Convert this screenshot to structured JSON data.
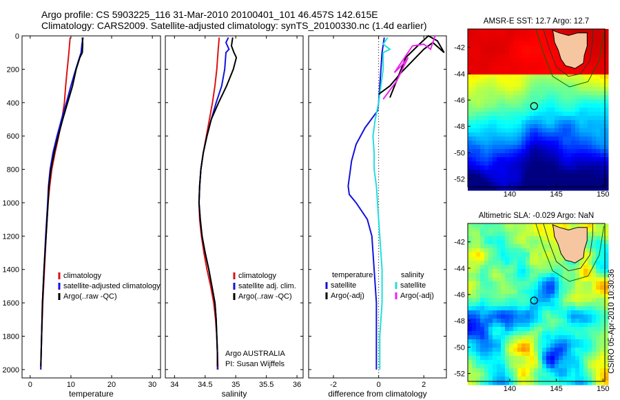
{
  "header": {
    "title_line1": "Argo profile: CS 5903225_116 31-Mar-2010 20100401_101 46.457S 142.615E",
    "title_line2": "Climatology: CARS2009. Satellite-adjusted climatology: synTS_20100330.nc (1.4d earlier)"
  },
  "colors": {
    "climatology": "#dd1111",
    "satellite": "#1111dd",
    "argo": "#000000",
    "salinity_satellite": "#22dddd",
    "salinity_argo": "#ee22ee"
  },
  "chart_data": [
    {
      "type": "line",
      "panel": "temperature",
      "xlabel": "temperature",
      "ylabel": "",
      "xlim": [
        -2,
        32
      ],
      "ylim": [
        2050,
        0
      ],
      "xticks": [
        "0",
        "10",
        "20",
        "30"
      ],
      "xtick_values": [
        0,
        10,
        20,
        30
      ],
      "yticks": [
        "0",
        "200",
        "400",
        "600",
        "800",
        "1000",
        "1200",
        "1400",
        "1600",
        "1800",
        "2000"
      ],
      "legend": [
        "climatology",
        "satellite-adjusted climatology",
        "Argo(..raw -QC)"
      ],
      "series": [
        {
          "name": "climatology",
          "color": "#dd1111",
          "points": [
            [
              9.8,
              10
            ],
            [
              9.5,
              100
            ],
            [
              9.1,
              200
            ],
            [
              8.7,
              300
            ],
            [
              8.4,
              400
            ],
            [
              7.8,
              500
            ],
            [
              7.0,
              600
            ],
            [
              6.1,
              700
            ],
            [
              5.3,
              800
            ],
            [
              4.8,
              900
            ],
            [
              4.4,
              1000
            ],
            [
              3.9,
              1200
            ],
            [
              3.5,
              1400
            ],
            [
              3.1,
              1600
            ],
            [
              2.8,
              1800
            ],
            [
              2.6,
              2000
            ]
          ]
        },
        {
          "name": "satellite-adjusted climatology",
          "color": "#1111dd",
          "points": [
            [
              13.0,
              10
            ],
            [
              12.7,
              50
            ],
            [
              12.5,
              100
            ],
            [
              11.2,
              200
            ],
            [
              10.0,
              300
            ],
            [
              8.9,
              400
            ],
            [
              7.7,
              500
            ],
            [
              6.6,
              600
            ],
            [
              5.6,
              700
            ],
            [
              4.9,
              800
            ],
            [
              4.5,
              900
            ],
            [
              4.3,
              1000
            ],
            [
              3.8,
              1200
            ],
            [
              3.4,
              1400
            ],
            [
              3.0,
              1600
            ],
            [
              2.8,
              1800
            ],
            [
              2.6,
              2000
            ]
          ]
        },
        {
          "name": "Argo(..raw -QC)",
          "color": "#000000",
          "points": [
            [
              12.8,
              10
            ],
            [
              12.9,
              50
            ],
            [
              12.8,
              100
            ],
            [
              12.2,
              130
            ],
            [
              11.3,
              200
            ],
            [
              10.4,
              300
            ],
            [
              9.2,
              400
            ],
            [
              8.0,
              500
            ],
            [
              6.9,
              600
            ],
            [
              5.9,
              700
            ],
            [
              5.1,
              800
            ],
            [
              4.6,
              900
            ],
            [
              4.4,
              1000
            ],
            [
              3.9,
              1200
            ],
            [
              3.4,
              1400
            ],
            [
              3.0,
              1600
            ],
            [
              2.8,
              1800
            ],
            [
              2.6,
              1980
            ]
          ]
        }
      ]
    },
    {
      "type": "line",
      "panel": "salinity",
      "xlabel": "salinity",
      "xlim": [
        33.85,
        36.1
      ],
      "ylim": [
        2050,
        0
      ],
      "xticks": [
        "34",
        "34.5",
        "35",
        "35.5",
        "36"
      ],
      "xtick_values": [
        34,
        34.5,
        35,
        35.5,
        36
      ],
      "legend": [
        "climatology",
        "satellite adj. clim.",
        "Argo(..raw -QC)"
      ],
      "annotation": [
        "Argo AUSTRALIA",
        "PI: Susan Wijffels"
      ],
      "series": [
        {
          "name": "climatology",
          "color": "#dd1111",
          "points": [
            [
              34.73,
              10
            ],
            [
              34.71,
              100
            ],
            [
              34.69,
              200
            ],
            [
              34.66,
              300
            ],
            [
              34.62,
              400
            ],
            [
              34.57,
              500
            ],
            [
              34.52,
              600
            ],
            [
              34.47,
              700
            ],
            [
              34.43,
              800
            ],
            [
              34.41,
              900
            ],
            [
              34.4,
              1000
            ],
            [
              34.41,
              1100
            ],
            [
              34.44,
              1200
            ],
            [
              34.48,
              1300
            ],
            [
              34.53,
              1400
            ],
            [
              34.59,
              1500
            ],
            [
              34.64,
              1600
            ],
            [
              34.67,
              1700
            ],
            [
              34.69,
              1800
            ],
            [
              34.7,
              1900
            ],
            [
              34.71,
              2000
            ]
          ]
        },
        {
          "name": "satellite adj. clim.",
          "color": "#1111dd",
          "points": [
            [
              34.88,
              10
            ],
            [
              34.84,
              40
            ],
            [
              34.89,
              80
            ],
            [
              34.84,
              100
            ],
            [
              34.82,
              200
            ],
            [
              34.77,
              300
            ],
            [
              34.68,
              400
            ],
            [
              34.6,
              500
            ],
            [
              34.53,
              600
            ],
            [
              34.47,
              700
            ],
            [
              34.43,
              800
            ],
            [
              34.41,
              900
            ],
            [
              34.4,
              1000
            ],
            [
              34.42,
              1100
            ],
            [
              34.45,
              1200
            ],
            [
              34.5,
              1300
            ],
            [
              34.56,
              1400
            ],
            [
              34.61,
              1500
            ],
            [
              34.66,
              1600
            ],
            [
              34.68,
              1700
            ],
            [
              34.69,
              1800
            ],
            [
              34.7,
              1900
            ],
            [
              34.7,
              2000
            ]
          ]
        },
        {
          "name": "Argo(..raw -QC)",
          "color": "#000000",
          "points": [
            [
              34.95,
              10
            ],
            [
              34.93,
              60
            ],
            [
              34.97,
              100
            ],
            [
              35.01,
              130
            ],
            [
              34.96,
              200
            ],
            [
              34.85,
              300
            ],
            [
              34.72,
              400
            ],
            [
              34.6,
              500
            ],
            [
              34.53,
              600
            ],
            [
              34.47,
              700
            ],
            [
              34.43,
              800
            ],
            [
              34.41,
              900
            ],
            [
              34.4,
              1000
            ],
            [
              34.42,
              1100
            ],
            [
              34.45,
              1200
            ],
            [
              34.5,
              1300
            ],
            [
              34.56,
              1400
            ],
            [
              34.61,
              1500
            ],
            [
              34.66,
              1600
            ],
            [
              34.68,
              1700
            ],
            [
              34.69,
              1800
            ],
            [
              34.7,
              1900
            ],
            [
              34.7,
              1980
            ]
          ]
        }
      ]
    },
    {
      "type": "line",
      "panel": "difference",
      "xlabel": "difference from climatology",
      "xlim": [
        -3.1,
        3.0
      ],
      "ylim": [
        2050,
        0
      ],
      "xticks": [
        "-2",
        "0",
        "2"
      ],
      "xtick_values": [
        -2,
        0,
        2
      ],
      "legend_temperature": {
        "title": "temperature",
        "items": [
          "satellite",
          "Argo(-adj)"
        ]
      },
      "legend_salinity": {
        "title": "salinity",
        "items": [
          "satellite",
          "Argo(-adj)"
        ]
      },
      "series": [
        {
          "name": "temperature satellite",
          "color": "#1111dd",
          "points": [
            [
              0.25,
              10
            ],
            [
              0.15,
              100
            ],
            [
              0.05,
              300
            ],
            [
              0.0,
              400
            ],
            [
              -0.05,
              450
            ],
            [
              -0.6,
              550
            ],
            [
              -1.0,
              650
            ],
            [
              -1.2,
              750
            ],
            [
              -1.25,
              800
            ],
            [
              -1.35,
              900
            ],
            [
              -1.3,
              950
            ],
            [
              -1.0,
              1000
            ],
            [
              -0.5,
              1100
            ],
            [
              -0.3,
              1200
            ],
            [
              -0.2,
              1400
            ],
            [
              -0.1,
              1600
            ],
            [
              -0.1,
              1800
            ],
            [
              -0.1,
              2000
            ]
          ]
        },
        {
          "name": "salinity satellite",
          "color": "#22dddd",
          "points": [
            [
              0.4,
              10
            ],
            [
              0.2,
              50
            ],
            [
              0.5,
              80
            ],
            [
              0.2,
              100
            ],
            [
              0.2,
              200
            ],
            [
              0.1,
              300
            ],
            [
              0.0,
              400
            ],
            [
              -0.15,
              500
            ],
            [
              -0.25,
              600
            ],
            [
              -0.2,
              700
            ],
            [
              -0.2,
              800
            ],
            [
              -0.1,
              900
            ],
            [
              -0.05,
              1000
            ],
            [
              0.05,
              1200
            ],
            [
              0.15,
              1400
            ],
            [
              0.15,
              1600
            ],
            [
              0.05,
              1800
            ],
            [
              0.05,
              2000
            ]
          ]
        },
        {
          "name": "temperature Argo(-adj)",
          "color": "#000000",
          "points": [
            [
              0.0,
              350
            ],
            [
              0.5,
              300
            ],
            [
              1.0,
              220
            ],
            [
              1.5,
              150
            ],
            [
              2.0,
              80
            ],
            [
              2.4,
              40
            ],
            [
              2.9,
              100
            ],
            [
              2.6,
              30
            ],
            [
              2.2,
              0
            ],
            [
              1.8,
              50
            ],
            [
              1.2,
              130
            ],
            [
              0.5,
              370
            ]
          ]
        },
        {
          "name": "salinity Argo(-adj)",
          "color": "#ee22ee",
          "points": [
            [
              0.2,
              380
            ],
            [
              0.8,
              270
            ],
            [
              1.3,
              130
            ],
            [
              1.0,
              180
            ],
            [
              0.7,
              220
            ],
            [
              1.5,
              60
            ],
            [
              2.0,
              50
            ],
            [
              2.3,
              80
            ],
            [
              2.5,
              0
            ]
          ]
        }
      ]
    },
    {
      "type": "heatmap",
      "panel": "sst_map",
      "title": "AMSR-E SST: 12.7 Argo: 12.7",
      "xlim": [
        135.5,
        150.2
      ],
      "ylim": [
        -52.6,
        -40.6
      ],
      "xticks": [
        "140",
        "145",
        "150"
      ],
      "xtick_values": [
        140,
        145,
        150
      ],
      "yticks": [
        "-42",
        "-44",
        "-46",
        "-48",
        "-50",
        "-52"
      ],
      "ytick_values": [
        -42,
        -44,
        -46,
        -48,
        -50,
        -52
      ],
      "marker": [
        142.615,
        -46.457
      ]
    },
    {
      "type": "heatmap",
      "panel": "sla_map",
      "title": "Altimetric SLA: -0.029 Argo: NaN",
      "xlim": [
        135.5,
        150.2
      ],
      "ylim": [
        -52.6,
        -40.6
      ],
      "xticks": [
        "140",
        "145",
        "150"
      ],
      "xtick_values": [
        140,
        145,
        150
      ],
      "yticks": [
        "-42",
        "-44",
        "-46",
        "-48",
        "-50",
        "-52"
      ],
      "ytick_values": [
        -42,
        -44,
        -46,
        -48,
        -50,
        -52
      ],
      "marker": [
        142.615,
        -46.457
      ]
    }
  ],
  "side_caption": "CSIRO 05-Apr-2010 10:30:36"
}
